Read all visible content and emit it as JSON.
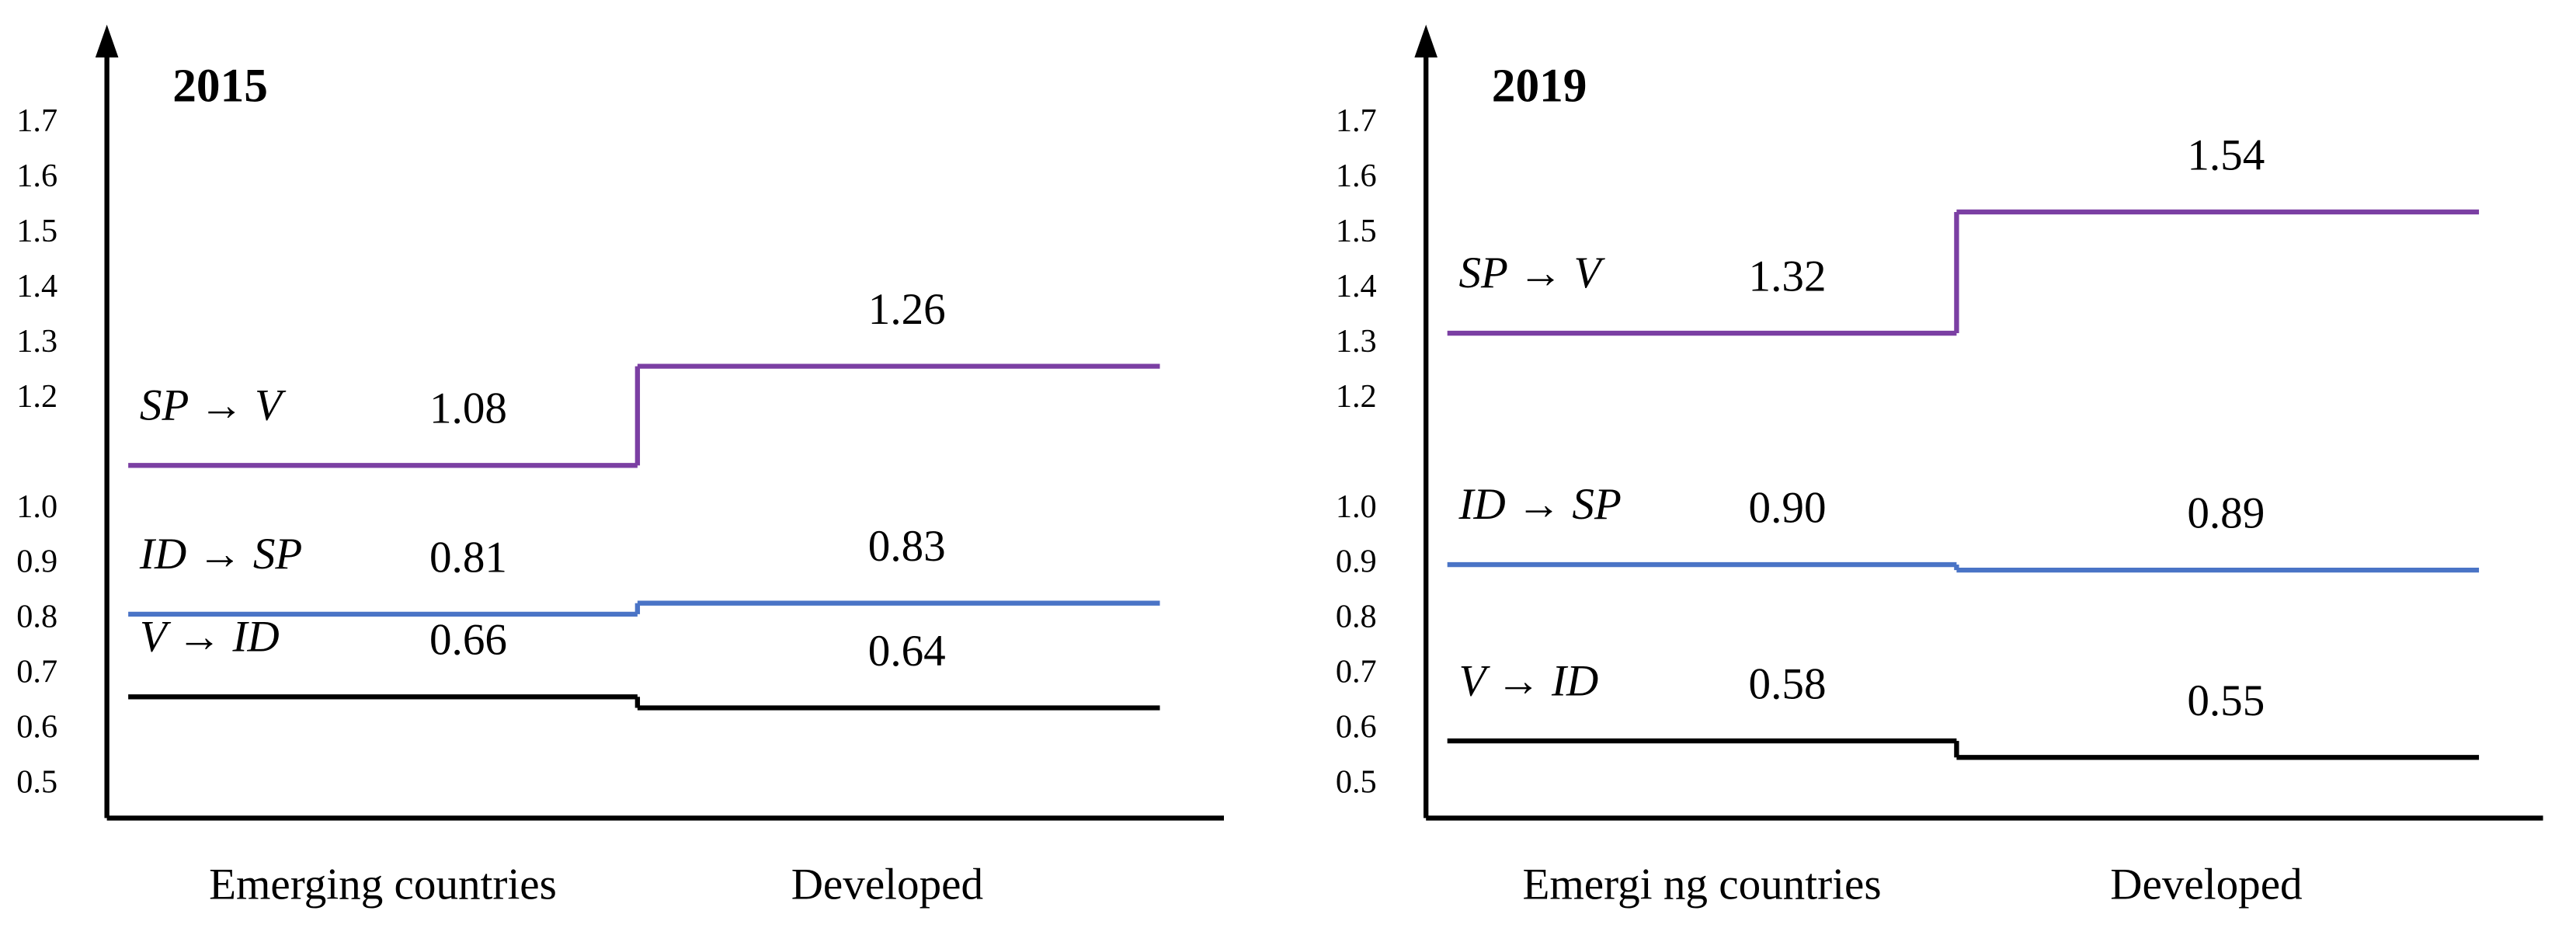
{
  "chart_data": [
    {
      "type": "step",
      "title": "2015",
      "categories": [
        "Emerging countries",
        "Developed"
      ],
      "series": [
        {
          "name": "SP → V",
          "color": "#7b3fa3",
          "values": [
            1.08,
            1.26
          ],
          "value_labels": [
            "1.08",
            "1.26"
          ]
        },
        {
          "name": "ID → SP",
          "color": "#4a74c6",
          "values": [
            0.81,
            0.83
          ],
          "value_labels": [
            "0.81",
            "0.83"
          ]
        },
        {
          "name": "V → ID",
          "color": "#000000",
          "values": [
            0.66,
            0.64
          ],
          "value_labels": [
            "0.66",
            "0.64"
          ]
        }
      ],
      "ylim": [
        0.44,
        1.88
      ],
      "yticks": [
        0.5,
        0.6,
        0.7,
        0.8,
        0.9,
        {
          "value": 1,
          "label": "1.0"
        },
        1.2,
        1.3,
        1.4,
        1.5,
        1.6,
        1.7
      ]
    },
    {
      "type": "step",
      "title": "2019",
      "categories": [
        "Emergi ng countries",
        "Developed"
      ],
      "series": [
        {
          "name": "SP → V",
          "color": "#7b3fa3",
          "values": [
            1.32,
            1.54
          ],
          "value_labels": [
            "1.32",
            "1.54"
          ]
        },
        {
          "name": "ID → SP",
          "color": "#4a74c6",
          "values": [
            0.9,
            0.89
          ],
          "value_labels": [
            "0.90",
            "0.89"
          ]
        },
        {
          "name": "V → ID",
          "color": "#000000",
          "values": [
            0.58,
            0.55
          ],
          "value_labels": [
            "0.58",
            "0.55"
          ]
        }
      ],
      "ylim": [
        0.44,
        1.88
      ],
      "yticks": [
        0.5,
        0.6,
        0.7,
        0.8,
        0.9,
        {
          "value": 1,
          "label": "1.0"
        },
        1.2,
        1.3,
        1.4,
        1.5,
        1.6,
        1.7
      ]
    }
  ]
}
